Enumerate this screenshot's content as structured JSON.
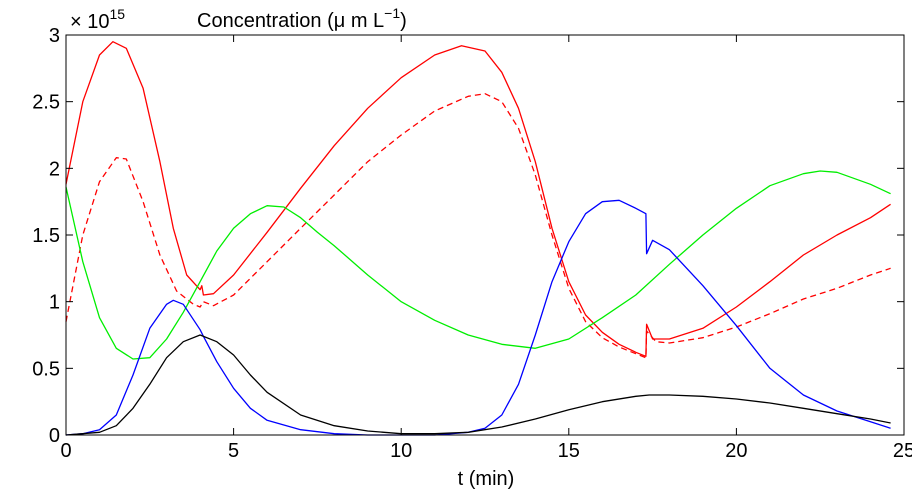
{
  "chart_data": {
    "type": "line",
    "title": "Concentration (μ m L",
    "title_exponent": "−1",
    "title_close": ")",
    "axis_multiplier": "× 10",
    "axis_multiplier_exponent": "15",
    "xlabel": "t (min)",
    "ylabel": "",
    "xlim": [
      0,
      25
    ],
    "ylim": [
      0,
      3
    ],
    "x_ticks": [
      0,
      5,
      10,
      15,
      20,
      25
    ],
    "y_ticks": [
      0,
      0.5,
      1,
      1.5,
      2,
      2.5,
      3
    ],
    "x_tick_labels": [
      "0",
      "5",
      "10",
      "15",
      "20",
      "25"
    ],
    "y_tick_labels": [
      "0",
      "0.5",
      "1",
      "1.5",
      "2",
      "2.5",
      "3"
    ],
    "grid": false,
    "legend": "none",
    "series": [
      {
        "color": "#ff0000",
        "dash": "solid",
        "points": [
          [
            0,
            1.88
          ],
          [
            0.5,
            2.5
          ],
          [
            1,
            2.85
          ],
          [
            1.4,
            2.95
          ],
          [
            1.8,
            2.9
          ],
          [
            2.3,
            2.6
          ],
          [
            2.8,
            2.05
          ],
          [
            3.2,
            1.55
          ],
          [
            3.6,
            1.2
          ],
          [
            4,
            1.09
          ],
          [
            4.05,
            1.12
          ],
          [
            4.1,
            1.05
          ],
          [
            4.4,
            1.06
          ],
          [
            5,
            1.2
          ],
          [
            6,
            1.52
          ],
          [
            7,
            1.85
          ],
          [
            8,
            2.17
          ],
          [
            9,
            2.45
          ],
          [
            10,
            2.68
          ],
          [
            11,
            2.85
          ],
          [
            11.8,
            2.92
          ],
          [
            12.5,
            2.88
          ],
          [
            13,
            2.72
          ],
          [
            13.5,
            2.45
          ],
          [
            14,
            2.05
          ],
          [
            14.5,
            1.55
          ],
          [
            15,
            1.15
          ],
          [
            15.5,
            0.9
          ],
          [
            16,
            0.77
          ],
          [
            16.5,
            0.68
          ],
          [
            17,
            0.62
          ],
          [
            17.3,
            0.59
          ],
          [
            17.32,
            0.83
          ],
          [
            17.5,
            0.72
          ],
          [
            18,
            0.72
          ],
          [
            19,
            0.8
          ],
          [
            20,
            0.96
          ],
          [
            21,
            1.15
          ],
          [
            22,
            1.35
          ],
          [
            23,
            1.5
          ],
          [
            24,
            1.63
          ],
          [
            24.6,
            1.73
          ]
        ]
      },
      {
        "color": "#ff0000",
        "dash": "dashed",
        "points": [
          [
            0,
            0.85
          ],
          [
            0.5,
            1.5
          ],
          [
            1,
            1.9
          ],
          [
            1.5,
            2.08
          ],
          [
            1.8,
            2.07
          ],
          [
            2.3,
            1.75
          ],
          [
            2.8,
            1.35
          ],
          [
            3.3,
            1.08
          ],
          [
            3.8,
            0.98
          ],
          [
            4,
            0.96
          ],
          [
            4.1,
            1.0
          ],
          [
            4.4,
            0.97
          ],
          [
            5,
            1.05
          ],
          [
            6,
            1.3
          ],
          [
            7,
            1.55
          ],
          [
            8,
            1.8
          ],
          [
            9,
            2.05
          ],
          [
            10,
            2.25
          ],
          [
            11,
            2.43
          ],
          [
            12,
            2.54
          ],
          [
            12.5,
            2.56
          ],
          [
            13,
            2.5
          ],
          [
            13.5,
            2.3
          ],
          [
            14,
            1.95
          ],
          [
            14.5,
            1.5
          ],
          [
            15,
            1.1
          ],
          [
            15.5,
            0.85
          ],
          [
            16,
            0.73
          ],
          [
            16.5,
            0.66
          ],
          [
            17,
            0.61
          ],
          [
            17.3,
            0.58
          ],
          [
            17.32,
            0.78
          ],
          [
            17.6,
            0.7
          ],
          [
            18,
            0.69
          ],
          [
            19,
            0.73
          ],
          [
            20,
            0.81
          ],
          [
            21,
            0.91
          ],
          [
            22,
            1.02
          ],
          [
            23,
            1.1
          ],
          [
            24,
            1.2
          ],
          [
            24.6,
            1.25
          ]
        ]
      },
      {
        "color": "#00ee00",
        "dash": "solid",
        "points": [
          [
            0,
            1.86
          ],
          [
            0.5,
            1.3
          ],
          [
            1,
            0.88
          ],
          [
            1.5,
            0.65
          ],
          [
            2,
            0.57
          ],
          [
            2.5,
            0.58
          ],
          [
            3,
            0.72
          ],
          [
            3.5,
            0.92
          ],
          [
            4,
            1.15
          ],
          [
            4.5,
            1.38
          ],
          [
            5,
            1.55
          ],
          [
            5.5,
            1.66
          ],
          [
            6,
            1.72
          ],
          [
            6.5,
            1.71
          ],
          [
            7,
            1.63
          ],
          [
            7.5,
            1.52
          ],
          [
            8,
            1.42
          ],
          [
            9,
            1.2
          ],
          [
            10,
            1.0
          ],
          [
            11,
            0.86
          ],
          [
            12,
            0.75
          ],
          [
            13,
            0.68
          ],
          [
            14,
            0.65
          ],
          [
            15,
            0.72
          ],
          [
            16,
            0.88
          ],
          [
            17,
            1.05
          ],
          [
            18,
            1.28
          ],
          [
            19,
            1.5
          ],
          [
            20,
            1.7
          ],
          [
            21,
            1.87
          ],
          [
            22,
            1.96
          ],
          [
            22.5,
            1.98
          ],
          [
            23,
            1.97
          ],
          [
            24,
            1.88
          ],
          [
            24.6,
            1.81
          ]
        ]
      },
      {
        "color": "#0000ff",
        "dash": "solid",
        "points": [
          [
            0,
            0.0
          ],
          [
            0.5,
            0.01
          ],
          [
            1,
            0.04
          ],
          [
            1.5,
            0.15
          ],
          [
            2,
            0.45
          ],
          [
            2.5,
            0.8
          ],
          [
            3,
            0.98
          ],
          [
            3.2,
            1.01
          ],
          [
            3.5,
            0.98
          ],
          [
            4,
            0.79
          ],
          [
            4.1,
            0.74
          ],
          [
            4.5,
            0.55
          ],
          [
            5,
            0.35
          ],
          [
            5.5,
            0.2
          ],
          [
            6,
            0.11
          ],
          [
            7,
            0.04
          ],
          [
            8,
            0.01
          ],
          [
            9,
            0.0
          ],
          [
            10,
            0.0
          ],
          [
            11,
            0.0
          ],
          [
            12,
            0.02
          ],
          [
            12.5,
            0.05
          ],
          [
            13,
            0.15
          ],
          [
            13.5,
            0.38
          ],
          [
            14,
            0.75
          ],
          [
            14.5,
            1.15
          ],
          [
            15,
            1.45
          ],
          [
            15.5,
            1.66
          ],
          [
            16,
            1.75
          ],
          [
            16.5,
            1.76
          ],
          [
            17,
            1.7
          ],
          [
            17.3,
            1.66
          ],
          [
            17.32,
            1.36
          ],
          [
            17.5,
            1.46
          ],
          [
            18,
            1.39
          ],
          [
            19,
            1.12
          ],
          [
            20,
            0.82
          ],
          [
            21,
            0.5
          ],
          [
            22,
            0.3
          ],
          [
            23,
            0.18
          ],
          [
            24,
            0.1
          ],
          [
            24.6,
            0.05
          ]
        ]
      },
      {
        "color": "#000000",
        "dash": "solid",
        "points": [
          [
            0,
            0.0
          ],
          [
            1,
            0.02
          ],
          [
            1.5,
            0.07
          ],
          [
            2,
            0.2
          ],
          [
            2.5,
            0.38
          ],
          [
            3,
            0.58
          ],
          [
            3.5,
            0.7
          ],
          [
            4,
            0.75
          ],
          [
            4.5,
            0.7
          ],
          [
            5,
            0.6
          ],
          [
            5.5,
            0.45
          ],
          [
            6,
            0.32
          ],
          [
            7,
            0.15
          ],
          [
            8,
            0.07
          ],
          [
            9,
            0.03
          ],
          [
            10,
            0.01
          ],
          [
            11,
            0.01
          ],
          [
            12,
            0.02
          ],
          [
            13,
            0.06
          ],
          [
            14,
            0.12
          ],
          [
            15,
            0.19
          ],
          [
            16,
            0.25
          ],
          [
            17,
            0.29
          ],
          [
            17.4,
            0.3
          ],
          [
            18,
            0.3
          ],
          [
            19,
            0.29
          ],
          [
            20,
            0.27
          ],
          [
            21,
            0.24
          ],
          [
            22,
            0.2
          ],
          [
            23,
            0.16
          ],
          [
            24,
            0.12
          ],
          [
            24.6,
            0.09
          ]
        ]
      }
    ]
  }
}
